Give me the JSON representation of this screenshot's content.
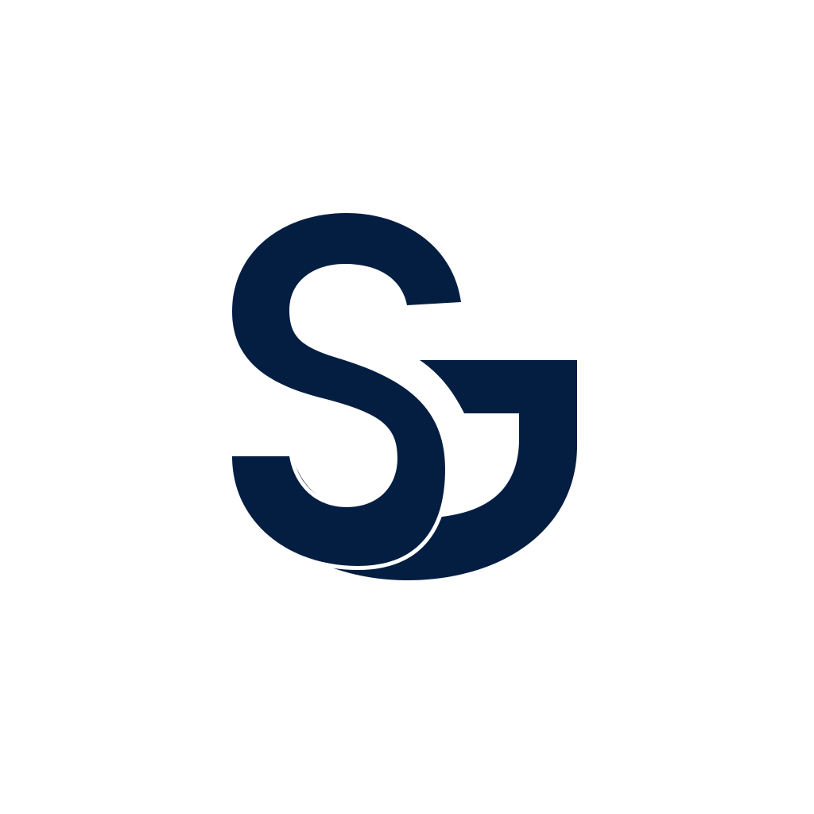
{
  "logo": {
    "monogram": "SG",
    "colors": {
      "mark": "#041e42",
      "background": "#ffffff"
    }
  }
}
